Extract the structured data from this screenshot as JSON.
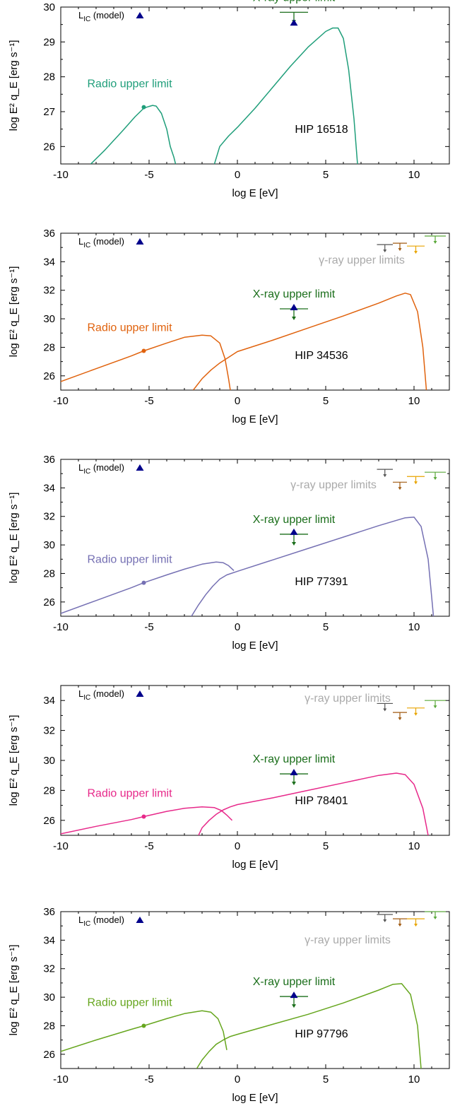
{
  "chart_data": [
    {
      "type": "line",
      "title": "",
      "xlabel": "log E [eV]",
      "ylabel": "log E² q_E [erg s⁻¹]",
      "xlim": [
        -10,
        12
      ],
      "ylim": [
        25.5,
        30
      ],
      "yticks": [
        26,
        27,
        28,
        29,
        30
      ],
      "xticks": [
        -10,
        -5,
        0,
        5,
        10
      ],
      "source_label": "HIP 16518",
      "color": "#1f9e7a",
      "series": [
        {
          "name": "",
          "x": [
            -8.3,
            -7.5,
            -6.5,
            -5.8,
            -5.3,
            -5.0,
            -4.8,
            -4.6,
            -4.3,
            -4.0,
            -3.8,
            -3.6,
            -3.5
          ],
          "y": [
            25.5,
            25.9,
            26.45,
            26.85,
            27.1,
            27.15,
            27.18,
            27.16,
            26.95,
            26.5,
            26.0,
            25.7,
            25.5
          ]
        },
        {
          "name": "",
          "x": [
            -1.3,
            -1.0,
            -0.5,
            0,
            1,
            2,
            3,
            4,
            5,
            5.4,
            5.7,
            6.0,
            6.3,
            6.6,
            6.8
          ],
          "y": [
            25.5,
            26.0,
            26.3,
            26.55,
            27.1,
            27.7,
            28.3,
            28.85,
            29.3,
            29.4,
            29.4,
            29.1,
            28.2,
            26.8,
            25.5
          ]
        }
      ],
      "radio_limit": {
        "x": -5.3,
        "y": 27.13
      },
      "xray_limit": {
        "x": 3.2,
        "y": 29.85,
        "xerr": [
          2.4,
          4.0
        ]
      },
      "lic_model": {
        "x": 3.2,
        "y": 29.55
      },
      "gamma_limits": [],
      "labels": {
        "lic": "L",
        "lic_sub": "IC",
        "lic_rest": " (model)",
        "radio": "Radio upper limit",
        "xray": "X-ray upper limit",
        "gamma": ""
      }
    },
    {
      "type": "line",
      "title": "",
      "xlabel": "log E [eV]",
      "ylabel": "log E² q_E [erg s⁻¹]",
      "xlim": [
        -10,
        12
      ],
      "ylim": [
        25,
        36
      ],
      "yticks": [
        26,
        28,
        30,
        32,
        34,
        36
      ],
      "xticks": [
        -10,
        -5,
        0,
        5,
        10
      ],
      "source_label": "HIP 34536",
      "color": "#e0620d",
      "series": [
        {
          "name": "",
          "x": [
            -10,
            -8,
            -6,
            -5.3,
            -4,
            -3,
            -2,
            -1.5,
            -1.0,
            -0.7,
            -0.5,
            -0.4
          ],
          "y": [
            25.6,
            26.5,
            27.4,
            27.75,
            28.3,
            28.7,
            28.85,
            28.8,
            28.3,
            27.2,
            25.8,
            25.0
          ]
        },
        {
          "name": "",
          "x": [
            -2.5,
            -2.0,
            -1.5,
            -1.0,
            -0.5,
            0,
            2,
            4,
            6,
            8,
            9,
            9.5,
            9.8,
            10.2,
            10.5,
            10.7
          ],
          "y": [
            25.0,
            25.8,
            26.4,
            26.9,
            27.3,
            27.7,
            28.5,
            29.35,
            30.2,
            31.1,
            31.6,
            31.8,
            31.7,
            30.5,
            28.0,
            25.0
          ]
        }
      ],
      "radio_limit": {
        "x": -5.3,
        "y": 27.75
      },
      "xray_limit": {
        "x": 3.2,
        "y": 30.7,
        "xerr": [
          2.4,
          4.0
        ]
      },
      "lic_model": {
        "x": 3.2,
        "y": 30.8
      },
      "gamma_limits": [
        {
          "x1": 7.9,
          "x2": 8.8,
          "y": 35.2,
          "color": "#555555"
        },
        {
          "x1": 8.8,
          "x2": 9.6,
          "y": 35.3,
          "color": "#a05a10"
        },
        {
          "x1": 9.6,
          "x2": 10.6,
          "y": 35.1,
          "color": "#e8a400"
        },
        {
          "x1": 10.6,
          "x2": 11.8,
          "y": 35.8,
          "color": "#5aa83a"
        }
      ],
      "labels": {
        "lic": "L",
        "lic_sub": "IC",
        "lic_rest": " (model)",
        "radio": "Radio upper limit",
        "xray": "X-ray upper limit",
        "gamma": "γ-ray upper limits"
      }
    },
    {
      "type": "line",
      "title": "",
      "xlabel": "log E [eV]",
      "ylabel": "log E² q_E [erg s⁻¹]",
      "xlim": [
        -10,
        12
      ],
      "ylim": [
        25,
        36
      ],
      "yticks": [
        26,
        28,
        30,
        32,
        34,
        36
      ],
      "xticks": [
        -10,
        -5,
        0,
        5,
        10
      ],
      "source_label": "HIP 77391",
      "color": "#7570b3",
      "series": [
        {
          "name": "",
          "x": [
            -10,
            -8,
            -6,
            -5.3,
            -4,
            -3,
            -2,
            -1.2,
            -0.8,
            -0.5,
            -0.2
          ],
          "y": [
            25.2,
            26.1,
            27.0,
            27.35,
            27.9,
            28.3,
            28.65,
            28.8,
            28.75,
            28.55,
            28.2
          ]
        },
        {
          "name": "",
          "x": [
            -2.6,
            -2.2,
            -1.8,
            -1.4,
            -1.0,
            -0.6,
            0,
            2,
            4,
            6,
            8,
            9.5,
            10,
            10.4,
            10.8,
            11.1
          ],
          "y": [
            25.0,
            25.8,
            26.5,
            27.1,
            27.6,
            27.9,
            28.15,
            28.95,
            29.75,
            30.55,
            31.35,
            31.9,
            31.95,
            31.3,
            29.0,
            25.0
          ]
        }
      ],
      "radio_limit": {
        "x": -5.3,
        "y": 27.35
      },
      "xray_limit": {
        "x": 3.2,
        "y": 30.75,
        "xerr": [
          2.4,
          4.0
        ]
      },
      "lic_model": {
        "x": 3.2,
        "y": 30.9
      },
      "gamma_limits": [
        {
          "x1": 7.9,
          "x2": 8.8,
          "y": 35.3,
          "color": "#555555"
        },
        {
          "x1": 8.8,
          "x2": 9.6,
          "y": 34.4,
          "color": "#a05a10"
        },
        {
          "x1": 9.6,
          "x2": 10.6,
          "y": 34.8,
          "color": "#e8a400"
        },
        {
          "x1": 10.6,
          "x2": 11.8,
          "y": 35.1,
          "color": "#5aa83a"
        }
      ],
      "labels": {
        "lic": "L",
        "lic_sub": "IC",
        "lic_rest": " (model)",
        "radio": "Radio upper limit",
        "xray": "X-ray upper limit",
        "gamma": "γ-ray upper limits"
      }
    },
    {
      "type": "line",
      "title": "",
      "xlabel": "log E [eV]",
      "ylabel": "log E² q_E [erg s⁻¹]",
      "xlim": [
        -10,
        12
      ],
      "ylim": [
        25,
        35
      ],
      "yticks": [
        26,
        28,
        30,
        32,
        34
      ],
      "xticks": [
        -10,
        -5,
        0,
        5,
        10
      ],
      "source_label": "HIP 78401",
      "color": "#e7298a",
      "series": [
        {
          "name": "",
          "x": [
            -10,
            -8,
            -6,
            -5.3,
            -4,
            -3,
            -2,
            -1.3,
            -0.9,
            -0.6,
            -0.3
          ],
          "y": [
            25.1,
            25.6,
            26.05,
            26.25,
            26.6,
            26.8,
            26.9,
            26.85,
            26.65,
            26.35,
            26.0
          ]
        },
        {
          "name": "",
          "x": [
            -2.2,
            -2.0,
            -1.6,
            -1.2,
            -0.8,
            -0.4,
            0,
            2,
            4,
            6,
            8,
            9,
            9.5,
            10,
            10.5,
            10.8
          ],
          "y": [
            25.0,
            25.5,
            26.0,
            26.4,
            26.7,
            26.9,
            27.05,
            27.5,
            28.0,
            28.5,
            29.0,
            29.15,
            29.05,
            28.4,
            26.8,
            25.0
          ]
        }
      ],
      "radio_limit": {
        "x": -5.3,
        "y": 26.25
      },
      "xray_limit": {
        "x": 3.2,
        "y": 29.1,
        "xerr": [
          2.4,
          4.0
        ]
      },
      "lic_model": {
        "x": 3.2,
        "y": 29.2
      },
      "gamma_limits": [
        {
          "x1": 7.9,
          "x2": 8.8,
          "y": 33.8,
          "color": "#555555"
        },
        {
          "x1": 8.8,
          "x2": 9.6,
          "y": 33.2,
          "color": "#a05a10"
        },
        {
          "x1": 9.6,
          "x2": 10.6,
          "y": 33.5,
          "color": "#e8a400"
        },
        {
          "x1": 10.6,
          "x2": 11.8,
          "y": 34.0,
          "color": "#5aa83a"
        }
      ],
      "labels": {
        "lic": "L",
        "lic_sub": "IC",
        "lic_rest": " (model)",
        "radio": "Radio upper limit",
        "xray": "X-ray upper limit",
        "gamma": "γ-ray upper limits"
      }
    },
    {
      "type": "line",
      "title": "",
      "xlabel": "log E [eV]",
      "ylabel": "log E² q_E [erg s⁻¹]",
      "xlim": [
        -10,
        12
      ],
      "ylim": [
        25,
        36
      ],
      "yticks": [
        26,
        28,
        30,
        32,
        34,
        36
      ],
      "xticks": [
        -10,
        -5,
        0,
        5,
        10
      ],
      "source_label": "HIP 97796",
      "color": "#66a61e",
      "series": [
        {
          "name": "",
          "x": [
            -10,
            -8,
            -6,
            -5.3,
            -4,
            -3,
            -2,
            -1.5,
            -1.1,
            -0.8,
            -0.6
          ],
          "y": [
            26.2,
            27.0,
            27.75,
            28.0,
            28.5,
            28.85,
            29.05,
            28.95,
            28.5,
            27.6,
            26.3
          ]
        },
        {
          "name": "",
          "x": [
            -2.3,
            -2.0,
            -1.6,
            -1.2,
            -0.8,
            -0.4,
            0,
            2,
            4,
            6,
            8,
            8.8,
            9.3,
            9.8,
            10.2,
            10.4
          ],
          "y": [
            25.0,
            25.6,
            26.2,
            26.7,
            27.0,
            27.25,
            27.4,
            28.1,
            28.8,
            29.6,
            30.5,
            30.9,
            30.95,
            30.2,
            28.0,
            25.0
          ]
        }
      ],
      "radio_limit": {
        "x": -5.3,
        "y": 28.0
      },
      "xray_limit": {
        "x": 3.2,
        "y": 30.05,
        "xerr": [
          2.4,
          4.0
        ]
      },
      "lic_model": {
        "x": 3.2,
        "y": 30.15
      },
      "gamma_limits": [
        {
          "x1": 7.9,
          "x2": 8.8,
          "y": 35.8,
          "color": "#555555"
        },
        {
          "x1": 8.8,
          "x2": 9.6,
          "y": 35.5,
          "color": "#a05a10"
        },
        {
          "x1": 9.6,
          "x2": 10.6,
          "y": 35.5,
          "color": "#e8a400"
        },
        {
          "x1": 10.6,
          "x2": 11.8,
          "y": 36.0,
          "color": "#5aa83a"
        }
      ],
      "labels": {
        "lic": "L",
        "lic_sub": "IC",
        "lic_rest": " (model)",
        "radio": "Radio upper limit",
        "xray": "X-ray upper limit",
        "gamma": "γ-ray upper limits"
      }
    }
  ],
  "colors": {
    "lic_marker": "#00008b",
    "xray": "#1a6e1a",
    "gamma_label": "#aaaaaa",
    "axis": "#000000"
  }
}
